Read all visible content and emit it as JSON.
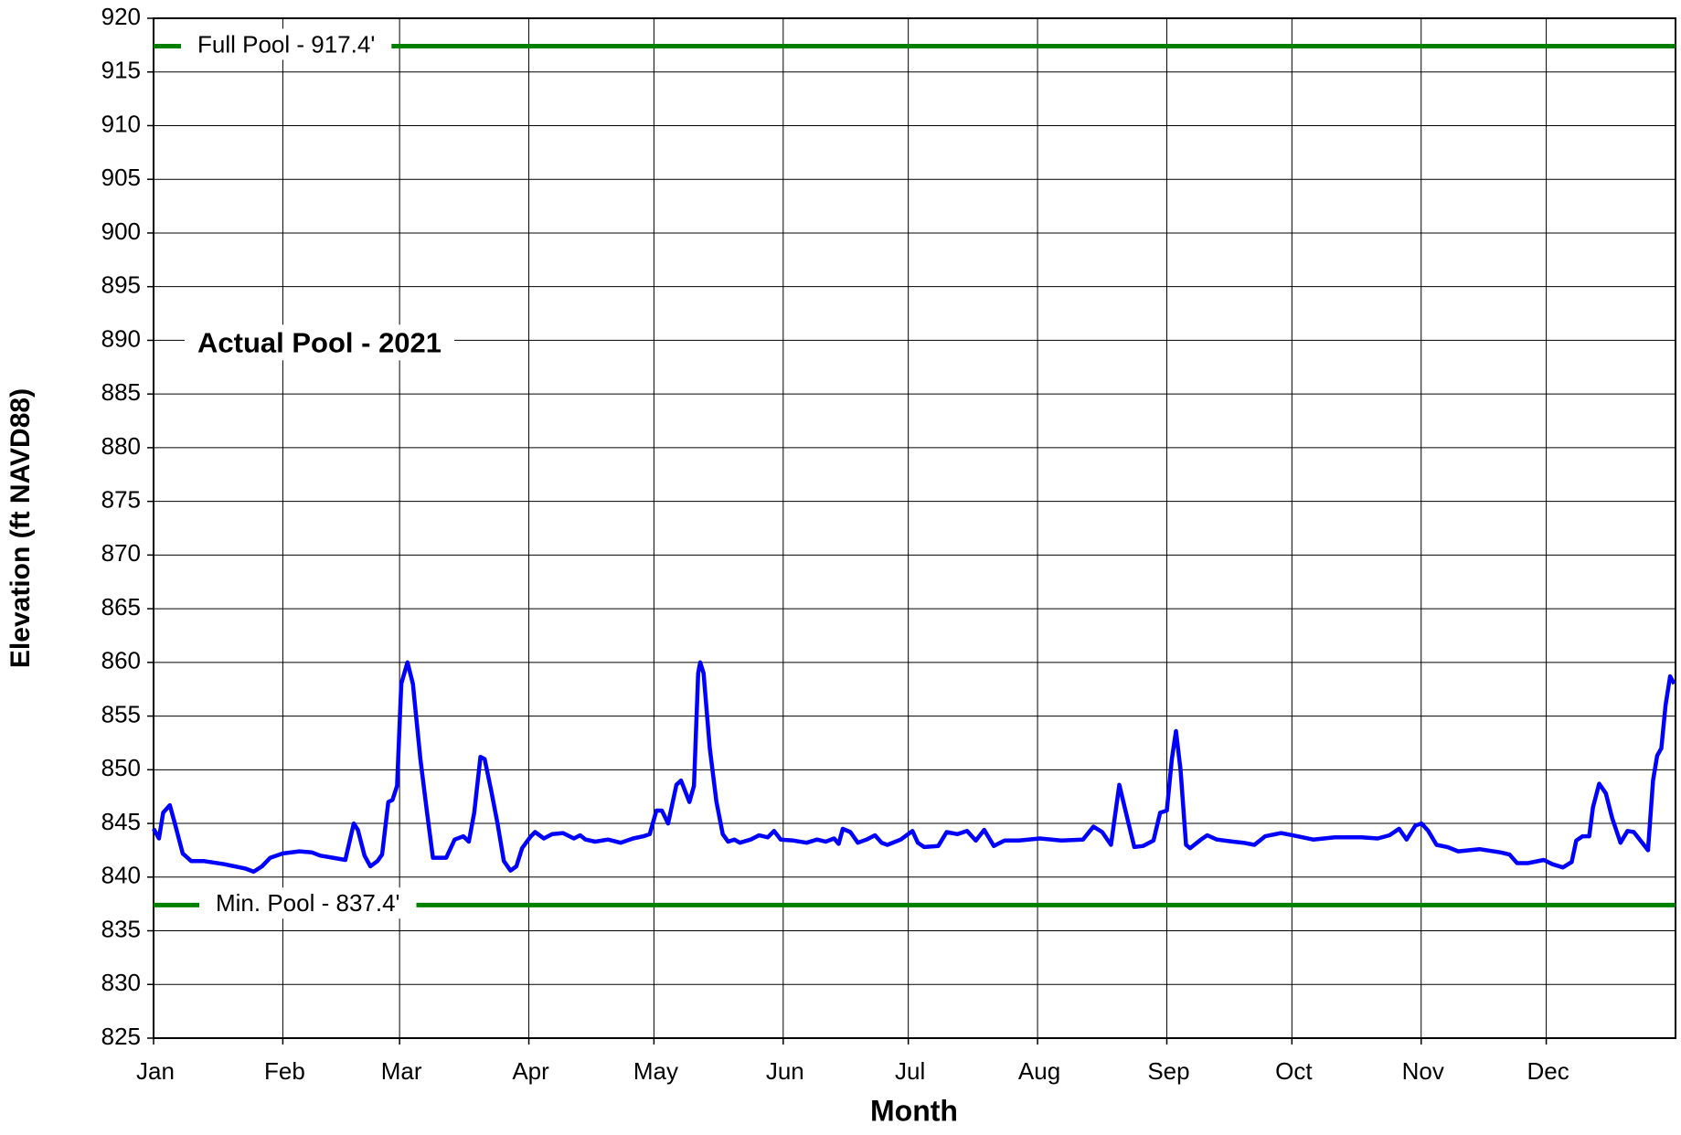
{
  "chart_data": {
    "type": "line",
    "xlabel": "Month",
    "ylabel": "Elevation (ft NAVD88)",
    "xlim": [
      0,
      365
    ],
    "ylim": [
      825,
      920
    ],
    "xticks": [
      {
        "value": 0,
        "label": "Jan"
      },
      {
        "value": 31,
        "label": "Feb"
      },
      {
        "value": 59,
        "label": "Mar"
      },
      {
        "value": 90,
        "label": "Apr"
      },
      {
        "value": 120,
        "label": "May"
      },
      {
        "value": 151,
        "label": "Jun"
      },
      {
        "value": 181,
        "label": "Jul"
      },
      {
        "value": 212,
        "label": "Aug"
      },
      {
        "value": 243,
        "label": "Sep"
      },
      {
        "value": 273,
        "label": "Oct"
      },
      {
        "value": 304,
        "label": "Nov"
      },
      {
        "value": 334,
        "label": "Dec"
      }
    ],
    "yticks": [
      825,
      830,
      835,
      840,
      845,
      850,
      855,
      860,
      865,
      870,
      875,
      880,
      885,
      890,
      895,
      900,
      905,
      910,
      915,
      920
    ],
    "grid": true,
    "reference_lines": [
      {
        "label": "Full Pool - 917.4'",
        "value": 917.4,
        "color": "#008000"
      },
      {
        "label": "Min. Pool - 837.4'",
        "value": 837.4,
        "color": "#008000"
      }
    ],
    "series": [
      {
        "name": "Actual Pool - 2021",
        "color": "#0000ff",
        "x": [
          0,
          1.3,
          2.3,
          3.9,
          5.1,
          7,
          9,
          12,
          17,
          22,
          24,
          26,
          28,
          31,
          35,
          38,
          40,
          43,
          46,
          48,
          49,
          50.6,
          52,
          53.7,
          54.8,
          56.3,
          57.3,
          58.4,
          59.4,
          60.9,
          62.2,
          64,
          65.6,
          67,
          68.6,
          70.2,
          72.2,
          74.3,
          75.6,
          76.9,
          78.4,
          79.4,
          81,
          82.5,
          84,
          85.6,
          87,
          88.4,
          90.5,
          91.5,
          93.6,
          95.6,
          98.2,
          100.8,
          102.3,
          103.6,
          105.9,
          109,
          112,
          115,
          117.5,
          119,
          120.6,
          121.9,
          123.4,
          125.4,
          126.5,
          127.5,
          128.5,
          129.6,
          130.6,
          131.1,
          131.9,
          133.4,
          135,
          136.5,
          137.8,
          139.3,
          140.6,
          143.2,
          145.2,
          147.3,
          148.8,
          150.4,
          153.5,
          156.6,
          159.1,
          161.2,
          163.2,
          164.3,
          165.3,
          167.1,
          168.9,
          171,
          173,
          174.6,
          176,
          179.2,
          182,
          183.3,
          184.8,
          188.2,
          190.2,
          192.8,
          195.1,
          197.2,
          199.2,
          201.5,
          204.1,
          207.5,
          212.6,
          217.7,
          222.9,
          225.4,
          227.5,
          229.6,
          231.6,
          233.2,
          235.2,
          237.3,
          239.8,
          241.4,
          243,
          244.2,
          245.2,
          246.3,
          247.6,
          248.6,
          251.2,
          252.7,
          255,
          258.9,
          261.4,
          264,
          266.6,
          270.4,
          274.3,
          278.1,
          283.3,
          289.7,
          293.6,
          296.4,
          298.7,
          300.5,
          302.6,
          304.1,
          305.7,
          307.7,
          310.3,
          312.9,
          318,
          323.1,
          325.2,
          327,
          329.6,
          333.4,
          335.5,
          338,
          340.1,
          341.2,
          342.7,
          344.3,
          345.2,
          346.7,
          348.3,
          349.8,
          351.8,
          353.5,
          355,
          356.6,
          358.4,
          359.6,
          360.6,
          361.6,
          362.6,
          363.7,
          364.7
        ],
        "values": [
          844.5,
          843.6,
          846,
          846.7,
          845,
          842.2,
          841.5,
          841.5,
          841.2,
          840.8,
          840.5,
          841,
          841.8,
          842.2,
          842.4,
          842.3,
          842,
          841.8,
          841.6,
          845,
          844.4,
          842,
          841,
          841.5,
          842.1,
          847,
          847.2,
          848.5,
          858,
          860,
          858,
          851,
          846,
          841.8,
          841.8,
          841.8,
          843.5,
          843.8,
          843.3,
          846,
          851.2,
          851,
          848,
          845,
          841.5,
          840.6,
          841,
          842.7,
          843.8,
          844.2,
          843.6,
          844,
          844.1,
          843.6,
          843.9,
          843.5,
          843.3,
          843.5,
          843.2,
          843.6,
          843.8,
          844,
          846.2,
          846.2,
          845,
          848.6,
          849,
          848,
          847,
          848.5,
          859,
          860,
          859,
          852,
          847,
          844,
          843.3,
          843.5,
          843.2,
          843.5,
          843.9,
          843.7,
          844.3,
          843.5,
          843.4,
          843.2,
          843.5,
          843.3,
          843.6,
          843.1,
          844.5,
          844.2,
          843.2,
          843.5,
          843.9,
          843.2,
          843,
          843.5,
          844.3,
          843.2,
          842.8,
          842.9,
          844.2,
          844,
          844.3,
          843.4,
          844.4,
          842.9,
          843.4,
          843.4,
          843.6,
          843.4,
          843.5,
          844.7,
          844.2,
          843,
          848.6,
          846,
          842.8,
          842.9,
          843.4,
          846,
          846.2,
          851,
          853.6,
          850,
          843,
          842.7,
          843.5,
          843.9,
          843.5,
          843.3,
          843.2,
          843,
          843.8,
          844.1,
          843.8,
          843.5,
          843.7,
          843.7,
          843.6,
          843.9,
          844.5,
          843.5,
          844.8,
          845,
          844.3,
          843,
          842.8,
          842.4,
          842.6,
          842.3,
          842.1,
          841.3,
          841.3,
          841.6,
          841.2,
          840.9,
          841.4,
          843.4,
          843.8,
          843.8,
          846.5,
          848.7,
          847.8,
          845.5,
          843.2,
          844.3,
          844.2,
          843.4,
          842.5,
          849,
          851.3,
          852,
          856,
          858.7,
          858
        ]
      }
    ]
  }
}
